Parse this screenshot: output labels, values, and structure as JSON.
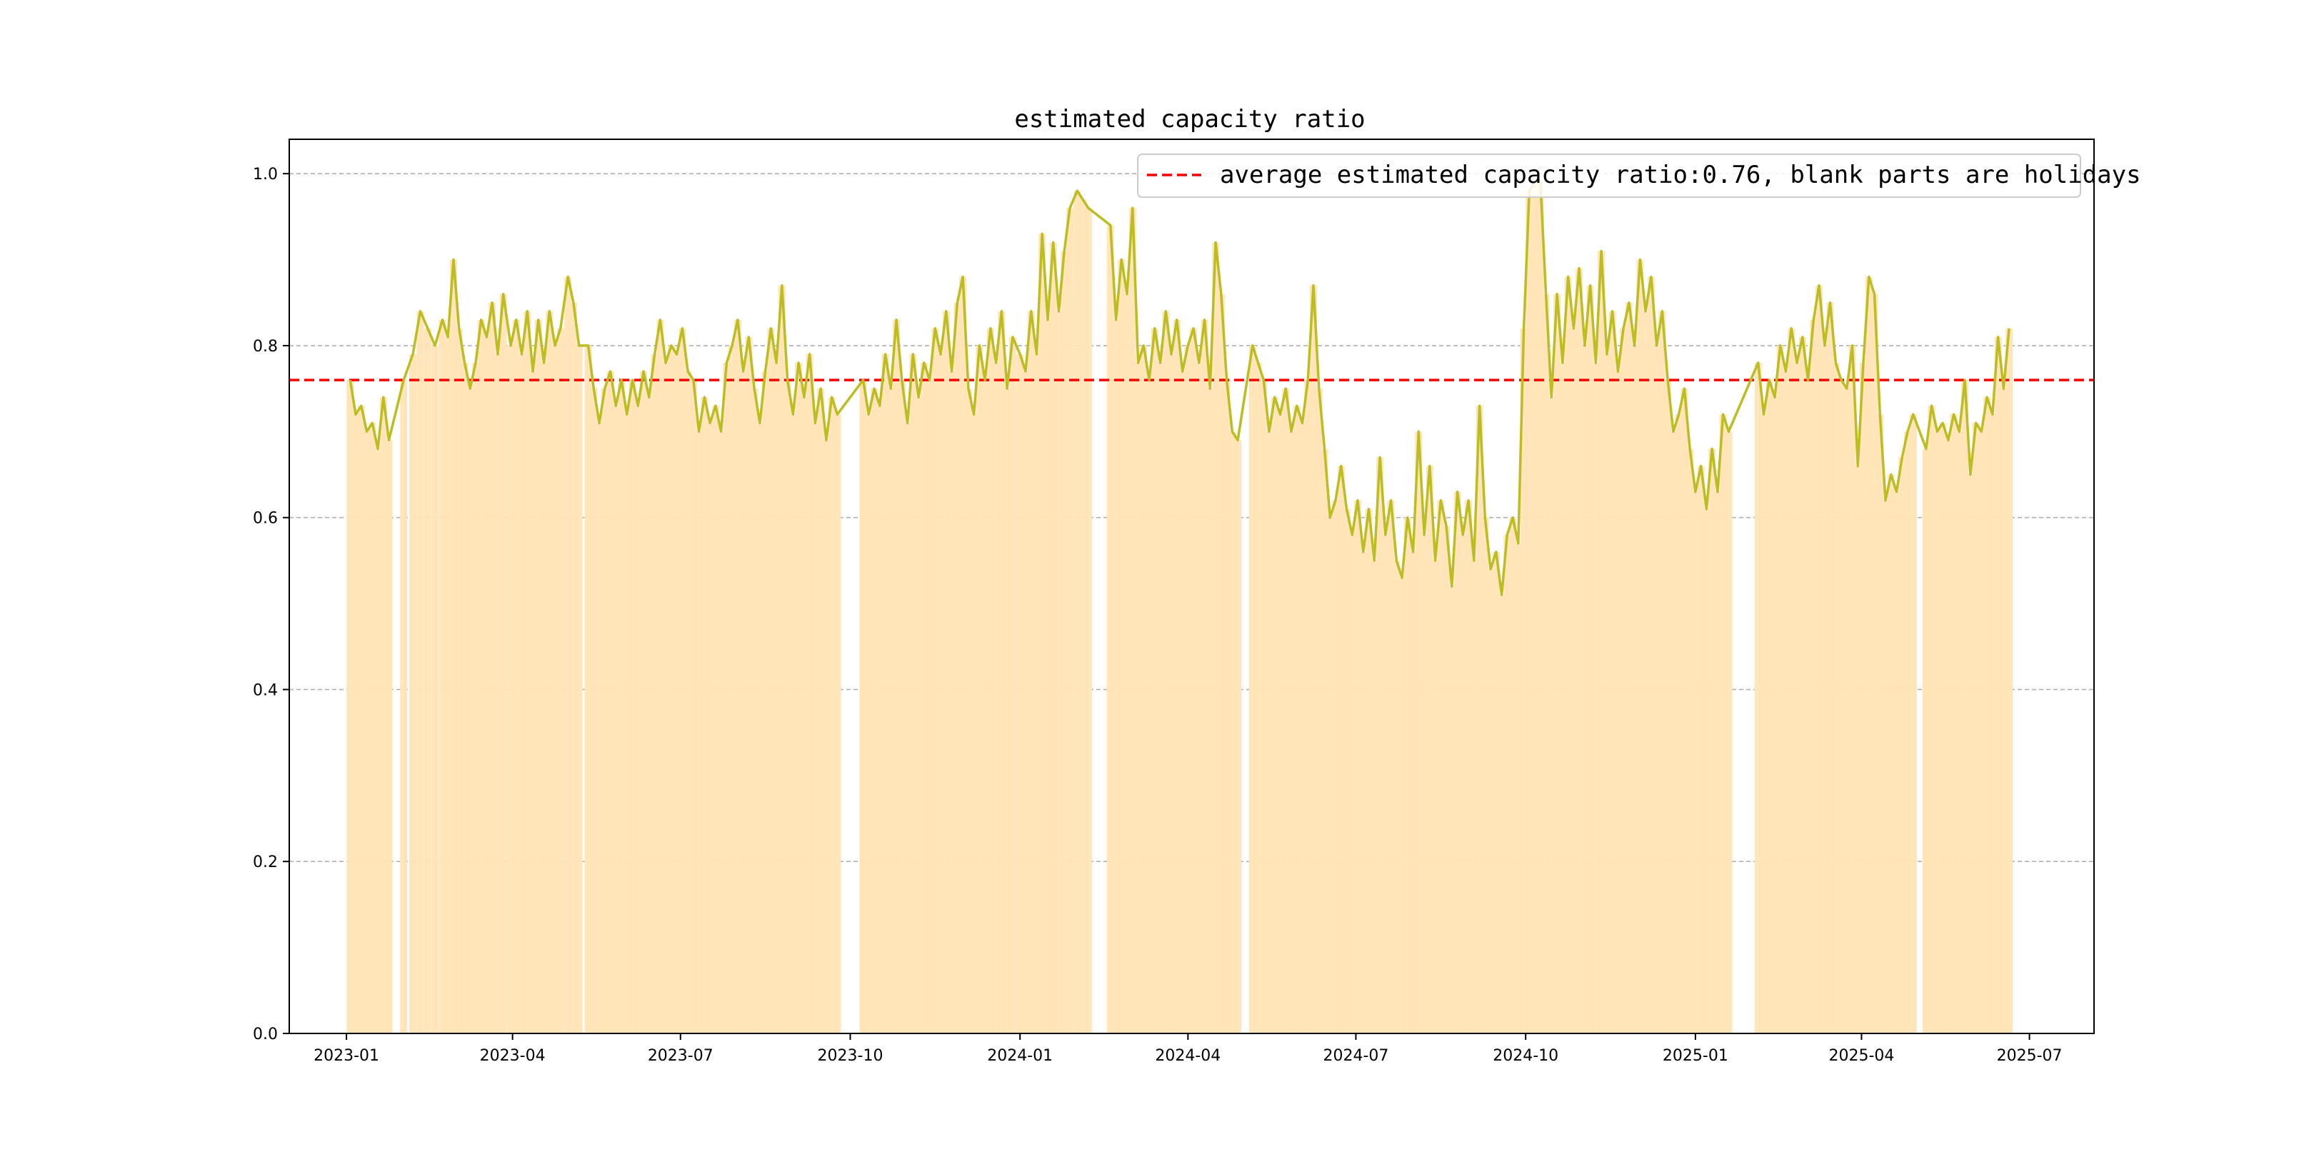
{
  "chart_data": {
    "type": "line",
    "title": "estimated capacity ratio",
    "xlabel": "",
    "ylabel": "",
    "ylim": [
      0.0,
      1.04
    ],
    "y_ticks": [
      "0.0",
      "0.2",
      "0.4",
      "0.6",
      "0.8",
      "1.0"
    ],
    "x_ticks": [
      "2023-01",
      "2023-04",
      "2023-07",
      "2023-10",
      "2024-01",
      "2024-04",
      "2024-07",
      "2024-10",
      "2025-01",
      "2025-04",
      "2025-07"
    ],
    "grid": "horizontal dashed",
    "legend": {
      "position": "top-right",
      "entries": [
        {
          "label": "average estimated capacity ratio:0.76, blank parts are holidays",
          "style": "red dashed line"
        }
      ]
    },
    "average": 0.76,
    "series": [
      {
        "name": "estimated capacity ratio",
        "points": [
          [
            "2023-01-03",
            0.76
          ],
          [
            "2023-01-06",
            0.72
          ],
          [
            "2023-01-09",
            0.73
          ],
          [
            "2023-01-12",
            0.7
          ],
          [
            "2023-01-15",
            0.71
          ],
          [
            "2023-01-18",
            0.68
          ],
          [
            "2023-01-21",
            0.74
          ],
          [
            "2023-01-24",
            0.69
          ],
          [
            "2023-02-01",
            0.76
          ],
          [
            "2023-02-06",
            0.79
          ],
          [
            "2023-02-10",
            0.84
          ],
          [
            "2023-02-14",
            0.82
          ],
          [
            "2023-02-18",
            0.8
          ],
          [
            "2023-02-22",
            0.83
          ],
          [
            "2023-02-25",
            0.81
          ],
          [
            "2023-02-28",
            0.9
          ],
          [
            "2023-03-03",
            0.82
          ],
          [
            "2023-03-06",
            0.78
          ],
          [
            "2023-03-09",
            0.75
          ],
          [
            "2023-03-12",
            0.78
          ],
          [
            "2023-03-15",
            0.83
          ],
          [
            "2023-03-18",
            0.81
          ],
          [
            "2023-03-21",
            0.85
          ],
          [
            "2023-03-24",
            0.79
          ],
          [
            "2023-03-27",
            0.86
          ],
          [
            "2023-03-31",
            0.8
          ],
          [
            "2023-04-03",
            0.83
          ],
          [
            "2023-04-06",
            0.79
          ],
          [
            "2023-04-09",
            0.84
          ],
          [
            "2023-04-12",
            0.77
          ],
          [
            "2023-04-15",
            0.83
          ],
          [
            "2023-04-18",
            0.78
          ],
          [
            "2023-04-21",
            0.84
          ],
          [
            "2023-04-24",
            0.8
          ],
          [
            "2023-04-27",
            0.82
          ],
          [
            "2023-05-01",
            0.88
          ],
          [
            "2023-05-04",
            0.85
          ],
          [
            "2023-05-07",
            0.8
          ],
          [
            "2023-05-12",
            0.8
          ],
          [
            "2023-05-15",
            0.75
          ],
          [
            "2023-05-18",
            0.71
          ],
          [
            "2023-05-21",
            0.75
          ],
          [
            "2023-05-24",
            0.77
          ],
          [
            "2023-05-27",
            0.73
          ],
          [
            "2023-05-30",
            0.76
          ],
          [
            "2023-06-02",
            0.72
          ],
          [
            "2023-06-05",
            0.76
          ],
          [
            "2023-06-08",
            0.73
          ],
          [
            "2023-06-11",
            0.77
          ],
          [
            "2023-06-14",
            0.74
          ],
          [
            "2023-06-17",
            0.79
          ],
          [
            "2023-06-20",
            0.83
          ],
          [
            "2023-06-23",
            0.78
          ],
          [
            "2023-06-26",
            0.8
          ],
          [
            "2023-06-29",
            0.79
          ],
          [
            "2023-07-02",
            0.82
          ],
          [
            "2023-07-05",
            0.77
          ],
          [
            "2023-07-08",
            0.76
          ],
          [
            "2023-07-11",
            0.7
          ],
          [
            "2023-07-14",
            0.74
          ],
          [
            "2023-07-17",
            0.71
          ],
          [
            "2023-07-20",
            0.73
          ],
          [
            "2023-07-23",
            0.7
          ],
          [
            "2023-07-26",
            0.78
          ],
          [
            "2023-07-29",
            0.8
          ],
          [
            "2023-08-01",
            0.83
          ],
          [
            "2023-08-04",
            0.77
          ],
          [
            "2023-08-07",
            0.81
          ],
          [
            "2023-08-10",
            0.75
          ],
          [
            "2023-08-13",
            0.71
          ],
          [
            "2023-08-16",
            0.77
          ],
          [
            "2023-08-19",
            0.82
          ],
          [
            "2023-08-22",
            0.78
          ],
          [
            "2023-08-25",
            0.87
          ],
          [
            "2023-08-28",
            0.76
          ],
          [
            "2023-08-31",
            0.72
          ],
          [
            "2023-09-03",
            0.78
          ],
          [
            "2023-09-06",
            0.74
          ],
          [
            "2023-09-09",
            0.79
          ],
          [
            "2023-09-12",
            0.71
          ],
          [
            "2023-09-15",
            0.75
          ],
          [
            "2023-09-18",
            0.69
          ],
          [
            "2023-09-21",
            0.74
          ],
          [
            "2023-09-24",
            0.72
          ],
          [
            "2023-10-08",
            0.76
          ],
          [
            "2023-10-11",
            0.72
          ],
          [
            "2023-10-14",
            0.75
          ],
          [
            "2023-10-17",
            0.73
          ],
          [
            "2023-10-20",
            0.79
          ],
          [
            "2023-10-23",
            0.75
          ],
          [
            "2023-10-26",
            0.83
          ],
          [
            "2023-10-29",
            0.76
          ],
          [
            "2023-11-01",
            0.71
          ],
          [
            "2023-11-04",
            0.79
          ],
          [
            "2023-11-07",
            0.74
          ],
          [
            "2023-11-10",
            0.78
          ],
          [
            "2023-11-13",
            0.76
          ],
          [
            "2023-11-16",
            0.82
          ],
          [
            "2023-11-19",
            0.79
          ],
          [
            "2023-11-22",
            0.84
          ],
          [
            "2023-11-25",
            0.77
          ],
          [
            "2023-11-28",
            0.85
          ],
          [
            "2023-12-01",
            0.88
          ],
          [
            "2023-12-04",
            0.75
          ],
          [
            "2023-12-07",
            0.72
          ],
          [
            "2023-12-10",
            0.8
          ],
          [
            "2023-12-13",
            0.76
          ],
          [
            "2023-12-16",
            0.82
          ],
          [
            "2023-12-19",
            0.78
          ],
          [
            "2023-12-22",
            0.84
          ],
          [
            "2023-12-25",
            0.75
          ],
          [
            "2023-12-28",
            0.81
          ],
          [
            "2024-01-01",
            0.79
          ],
          [
            "2024-01-04",
            0.77
          ],
          [
            "2024-01-07",
            0.84
          ],
          [
            "2024-01-10",
            0.79
          ],
          [
            "2024-01-13",
            0.93
          ],
          [
            "2024-01-16",
            0.83
          ],
          [
            "2024-01-19",
            0.92
          ],
          [
            "2024-01-22",
            0.84
          ],
          [
            "2024-01-25",
            0.91
          ],
          [
            "2024-01-28",
            0.96
          ],
          [
            "2024-02-01",
            0.98
          ],
          [
            "2024-02-04",
            0.97
          ],
          [
            "2024-02-07",
            0.96
          ],
          [
            "2024-02-19",
            0.94
          ],
          [
            "2024-02-22",
            0.83
          ],
          [
            "2024-02-25",
            0.9
          ],
          [
            "2024-02-28",
            0.86
          ],
          [
            "2024-03-02",
            0.96
          ],
          [
            "2024-03-05",
            0.78
          ],
          [
            "2024-03-08",
            0.8
          ],
          [
            "2024-03-11",
            0.76
          ],
          [
            "2024-03-14",
            0.82
          ],
          [
            "2024-03-17",
            0.78
          ],
          [
            "2024-03-20",
            0.84
          ],
          [
            "2024-03-23",
            0.79
          ],
          [
            "2024-03-26",
            0.83
          ],
          [
            "2024-03-29",
            0.77
          ],
          [
            "2024-04-01",
            0.8
          ],
          [
            "2024-04-04",
            0.82
          ],
          [
            "2024-04-07",
            0.78
          ],
          [
            "2024-04-10",
            0.83
          ],
          [
            "2024-04-13",
            0.75
          ],
          [
            "2024-04-16",
            0.92
          ],
          [
            "2024-04-19",
            0.86
          ],
          [
            "2024-04-22",
            0.76
          ],
          [
            "2024-04-25",
            0.7
          ],
          [
            "2024-04-28",
            0.69
          ],
          [
            "2024-05-06",
            0.8
          ],
          [
            "2024-05-09",
            0.78
          ],
          [
            "2024-05-12",
            0.76
          ],
          [
            "2024-05-15",
            0.7
          ],
          [
            "2024-05-18",
            0.74
          ],
          [
            "2024-05-21",
            0.72
          ],
          [
            "2024-05-24",
            0.75
          ],
          [
            "2024-05-27",
            0.7
          ],
          [
            "2024-05-30",
            0.73
          ],
          [
            "2024-06-02",
            0.71
          ],
          [
            "2024-06-05",
            0.76
          ],
          [
            "2024-06-08",
            0.87
          ],
          [
            "2024-06-11",
            0.75
          ],
          [
            "2024-06-14",
            0.68
          ],
          [
            "2024-06-17",
            0.6
          ],
          [
            "2024-06-20",
            0.62
          ],
          [
            "2024-06-23",
            0.66
          ],
          [
            "2024-06-26",
            0.61
          ],
          [
            "2024-06-29",
            0.58
          ],
          [
            "2024-07-02",
            0.62
          ],
          [
            "2024-07-05",
            0.56
          ],
          [
            "2024-07-08",
            0.61
          ],
          [
            "2024-07-11",
            0.55
          ],
          [
            "2024-07-14",
            0.67
          ],
          [
            "2024-07-17",
            0.58
          ],
          [
            "2024-07-20",
            0.62
          ],
          [
            "2024-07-23",
            0.55
          ],
          [
            "2024-07-26",
            0.53
          ],
          [
            "2024-07-29",
            0.6
          ],
          [
            "2024-08-01",
            0.56
          ],
          [
            "2024-08-04",
            0.7
          ],
          [
            "2024-08-07",
            0.58
          ],
          [
            "2024-08-10",
            0.66
          ],
          [
            "2024-08-13",
            0.55
          ],
          [
            "2024-08-16",
            0.62
          ],
          [
            "2024-08-19",
            0.59
          ],
          [
            "2024-08-22",
            0.52
          ],
          [
            "2024-08-25",
            0.63
          ],
          [
            "2024-08-28",
            0.58
          ],
          [
            "2024-08-31",
            0.62
          ],
          [
            "2024-09-03",
            0.55
          ],
          [
            "2024-09-06",
            0.73
          ],
          [
            "2024-09-09",
            0.6
          ],
          [
            "2024-09-12",
            0.54
          ],
          [
            "2024-09-15",
            0.56
          ],
          [
            "2024-09-18",
            0.51
          ],
          [
            "2024-09-21",
            0.58
          ],
          [
            "2024-09-24",
            0.6
          ],
          [
            "2024-09-27",
            0.57
          ],
          [
            "2024-09-30",
            0.82
          ],
          [
            "2024-10-03",
            0.98
          ],
          [
            "2024-10-06",
            0.99
          ],
          [
            "2024-10-09",
            0.99
          ],
          [
            "2024-10-12",
            0.86
          ],
          [
            "2024-10-15",
            0.74
          ],
          [
            "2024-10-18",
            0.86
          ],
          [
            "2024-10-21",
            0.78
          ],
          [
            "2024-10-24",
            0.88
          ],
          [
            "2024-10-27",
            0.82
          ],
          [
            "2024-10-30",
            0.89
          ],
          [
            "2024-11-02",
            0.8
          ],
          [
            "2024-11-05",
            0.87
          ],
          [
            "2024-11-08",
            0.78
          ],
          [
            "2024-11-11",
            0.91
          ],
          [
            "2024-11-14",
            0.79
          ],
          [
            "2024-11-17",
            0.84
          ],
          [
            "2024-11-20",
            0.77
          ],
          [
            "2024-11-23",
            0.82
          ],
          [
            "2024-11-26",
            0.85
          ],
          [
            "2024-11-29",
            0.8
          ],
          [
            "2024-12-02",
            0.9
          ],
          [
            "2024-12-05",
            0.84
          ],
          [
            "2024-12-08",
            0.88
          ],
          [
            "2024-12-11",
            0.8
          ],
          [
            "2024-12-14",
            0.84
          ],
          [
            "2024-12-17",
            0.76
          ],
          [
            "2024-12-20",
            0.7
          ],
          [
            "2024-12-23",
            0.72
          ],
          [
            "2024-12-26",
            0.75
          ],
          [
            "2024-12-29",
            0.68
          ],
          [
            "2025-01-01",
            0.63
          ],
          [
            "2025-01-04",
            0.66
          ],
          [
            "2025-01-07",
            0.61
          ],
          [
            "2025-01-10",
            0.68
          ],
          [
            "2025-01-13",
            0.63
          ],
          [
            "2025-01-16",
            0.72
          ],
          [
            "2025-01-19",
            0.7
          ],
          [
            "2025-02-04",
            0.78
          ],
          [
            "2025-02-07",
            0.72
          ],
          [
            "2025-02-10",
            0.76
          ],
          [
            "2025-02-13",
            0.74
          ],
          [
            "2025-02-16",
            0.8
          ],
          [
            "2025-02-19",
            0.77
          ],
          [
            "2025-02-22",
            0.82
          ],
          [
            "2025-02-25",
            0.78
          ],
          [
            "2025-02-28",
            0.81
          ],
          [
            "2025-03-03",
            0.76
          ],
          [
            "2025-03-06",
            0.83
          ],
          [
            "2025-03-09",
            0.87
          ],
          [
            "2025-03-12",
            0.8
          ],
          [
            "2025-03-15",
            0.85
          ],
          [
            "2025-03-18",
            0.78
          ],
          [
            "2025-03-21",
            0.76
          ],
          [
            "2025-03-24",
            0.75
          ],
          [
            "2025-03-27",
            0.8
          ],
          [
            "2025-03-30",
            0.66
          ],
          [
            "2025-04-02",
            0.78
          ],
          [
            "2025-04-05",
            0.88
          ],
          [
            "2025-04-08",
            0.86
          ],
          [
            "2025-04-11",
            0.72
          ],
          [
            "2025-04-14",
            0.62
          ],
          [
            "2025-04-17",
            0.65
          ],
          [
            "2025-04-20",
            0.63
          ],
          [
            "2025-04-23",
            0.67
          ],
          [
            "2025-04-26",
            0.7
          ],
          [
            "2025-04-29",
            0.72
          ],
          [
            "2025-05-06",
            0.68
          ],
          [
            "2025-05-09",
            0.73
          ],
          [
            "2025-05-12",
            0.7
          ],
          [
            "2025-05-15",
            0.71
          ],
          [
            "2025-05-18",
            0.69
          ],
          [
            "2025-05-21",
            0.72
          ],
          [
            "2025-05-24",
            0.7
          ],
          [
            "2025-05-27",
            0.76
          ],
          [
            "2025-05-30",
            0.65
          ],
          [
            "2025-06-02",
            0.71
          ],
          [
            "2025-06-05",
            0.7
          ],
          [
            "2025-06-08",
            0.74
          ],
          [
            "2025-06-11",
            0.72
          ],
          [
            "2025-06-14",
            0.81
          ],
          [
            "2025-06-17",
            0.75
          ],
          [
            "2025-06-20",
            0.82
          ]
        ]
      }
    ]
  }
}
